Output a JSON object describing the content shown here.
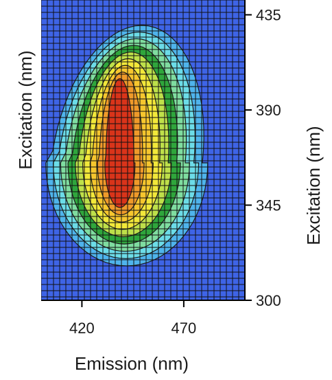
{
  "chart_data": {
    "type": "heatmap",
    "subtype": "filled-contour (excitation-emission matrix)",
    "title": "",
    "xlabel": "Emission (nm)",
    "ylabel_left": "Excitation (nm)",
    "ylabel_right": "Excitation (nm)",
    "x_ticks": [
      420,
      470
    ],
    "y_ticks": [
      300,
      345,
      390,
      435
    ],
    "xlim": [
      400,
      500
    ],
    "ylim": [
      300,
      442
    ],
    "grid": "on (dense square mesh)",
    "peak": {
      "emission": 440,
      "excitation": 365
    },
    "contour_levels": [
      {
        "level": 0,
        "color": "#3E64E6"
      },
      {
        "level": 1,
        "color": "#4FB4EC"
      },
      {
        "level": 2,
        "color": "#6CDCE8"
      },
      {
        "level": 3,
        "color": "#7FDDA0"
      },
      {
        "level": 4,
        "color": "#2FA63C"
      },
      {
        "level": 5,
        "color": "#BEE04A"
      },
      {
        "level": 6,
        "color": "#F2E83A"
      },
      {
        "level": 7,
        "color": "#F6C62E"
      },
      {
        "level": 8,
        "color": "#EF9A2A"
      },
      {
        "level": 9,
        "color": "#D9341A"
      }
    ]
  }
}
